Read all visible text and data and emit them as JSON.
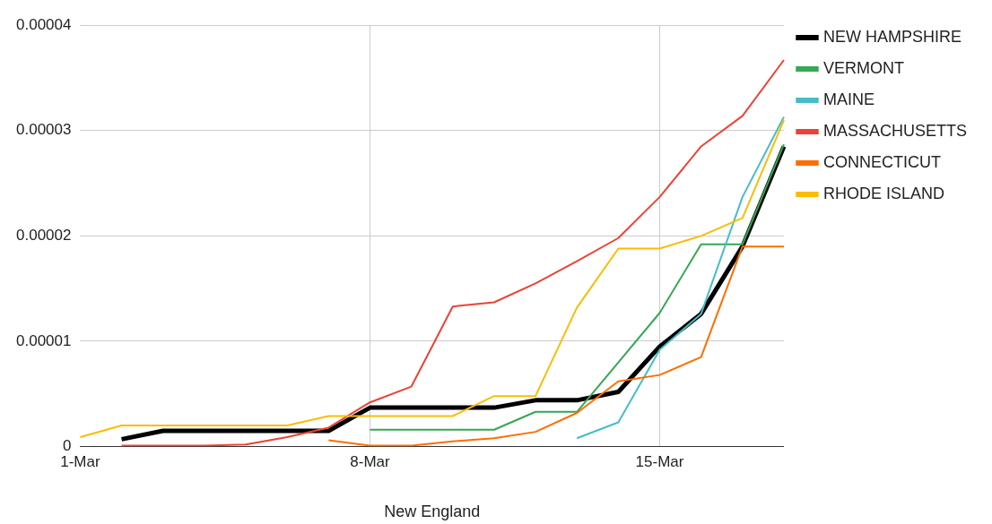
{
  "chart_data": {
    "type": "line",
    "xlabel": "New England",
    "categories": [
      "1-Mar",
      null,
      null,
      null,
      null,
      null,
      null,
      "8-Mar",
      null,
      null,
      null,
      null,
      null,
      null,
      "15-Mar",
      null,
      null,
      null
    ],
    "ylim": [
      0,
      4e-05
    ],
    "yticks": [
      {
        "value": 0,
        "label": "0"
      },
      {
        "value": 1e-05,
        "label": "0.00001"
      },
      {
        "value": 2e-05,
        "label": "0.00002"
      },
      {
        "value": 3e-05,
        "label": "0.00003"
      },
      {
        "value": 4e-05,
        "label": "0.00004"
      }
    ],
    "grid": true,
    "legend": "right",
    "marker": "none",
    "line_style": "solid",
    "series": [
      {
        "name": "NEW HAMPSHIRE",
        "color": "#000000",
        "values": [
          null,
          7e-07,
          1.5e-06,
          1.5e-06,
          1.5e-06,
          1.5e-06,
          1.5e-06,
          3.7e-06,
          3.7e-06,
          3.7e-06,
          3.7e-06,
          4.4e-06,
          4.4e-06,
          5.2e-06,
          9.5e-06,
          1.26e-05,
          1.9e-05,
          2.85e-05
        ]
      },
      {
        "name": "VERMONT",
        "color": "#34a853",
        "values": [
          null,
          null,
          null,
          null,
          null,
          null,
          null,
          1.6e-06,
          1.6e-06,
          1.6e-06,
          1.6e-06,
          3.3e-06,
          3.3e-06,
          8e-06,
          1.27e-05,
          1.92e-05,
          1.92e-05,
          2.87e-05
        ]
      },
      {
        "name": "MAINE",
        "color": "#46bdc6",
        "values": [
          null,
          null,
          null,
          null,
          null,
          null,
          null,
          null,
          null,
          null,
          null,
          null,
          8e-07,
          2.3e-06,
          9.2e-06,
          1.26e-05,
          2.37e-05,
          3.13e-05
        ]
      },
      {
        "name": "MASSACHUSETTS",
        "color": "#ea4335",
        "values": [
          null,
          1e-07,
          1e-07,
          1e-07,
          2e-07,
          9e-07,
          1.8e-06,
          4.2e-06,
          5.7e-06,
          1.33e-05,
          1.37e-05,
          1.55e-05,
          1.76e-05,
          1.98e-05,
          2.37e-05,
          2.85e-05,
          3.14e-05,
          3.67e-05
        ]
      },
      {
        "name": "CONNECTICUT",
        "color": "#ff6d01",
        "values": [
          null,
          null,
          null,
          null,
          null,
          null,
          6e-07,
          1e-07,
          1e-07,
          5e-07,
          8e-07,
          1.4e-06,
          3.2e-06,
          6.2e-06,
          6.8e-06,
          8.5e-06,
          1.9e-05,
          1.9e-05
        ]
      },
      {
        "name": "RHODE ISLAND",
        "color": "#fbbc04",
        "values": [
          9e-07,
          2e-06,
          2e-06,
          2e-06,
          2e-06,
          2e-06,
          2.9e-06,
          2.9e-06,
          2.9e-06,
          2.9e-06,
          4.8e-06,
          4.8e-06,
          1.32e-05,
          1.88e-05,
          1.88e-05,
          2e-05,
          2.17e-05,
          3.1e-05
        ]
      }
    ]
  }
}
